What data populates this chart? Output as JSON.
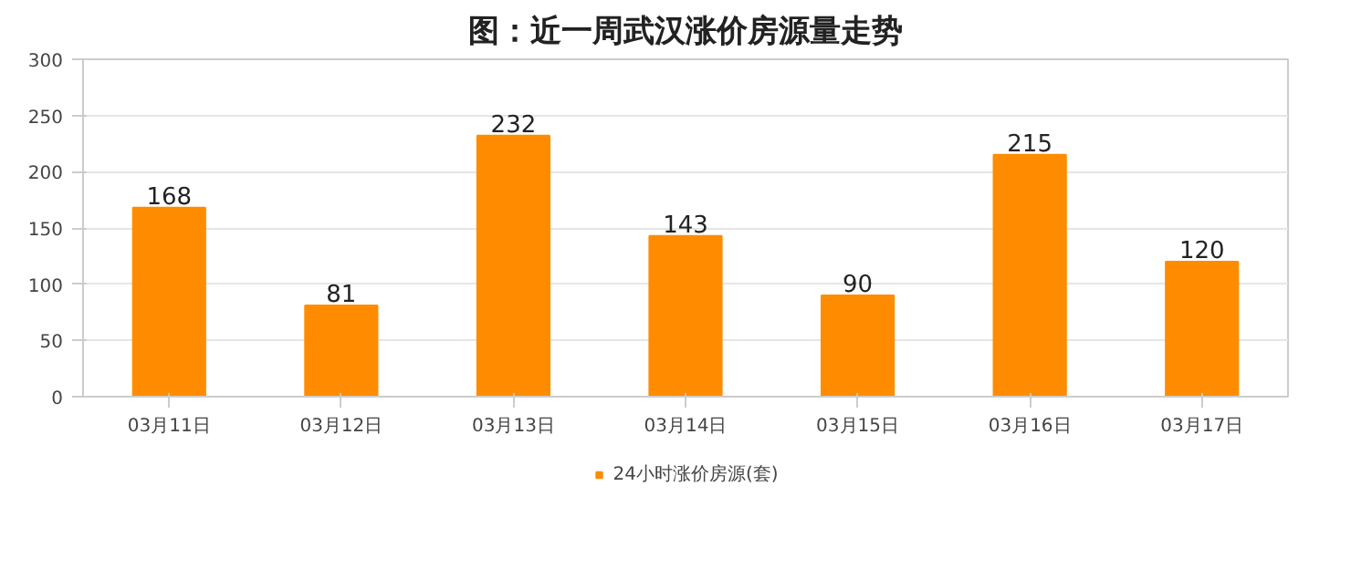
{
  "chart_data": {
    "type": "bar",
    "title": "图：近一周武汉涨价房源量走势",
    "categories": [
      "03月11日",
      "03月12日",
      "03月13日",
      "03月14日",
      "03月15日",
      "03月16日",
      "03月17日"
    ],
    "series": [
      {
        "name": "24小时涨价房源(套)",
        "color": "#ff8c00",
        "values": [
          168,
          81,
          232,
          143,
          90,
          215,
          120
        ]
      }
    ],
    "ylim": [
      0,
      300
    ],
    "yticks": [
      0,
      50,
      100,
      150,
      200,
      250,
      300
    ],
    "grid": "y",
    "legend": "bottom",
    "data_labels": true
  }
}
